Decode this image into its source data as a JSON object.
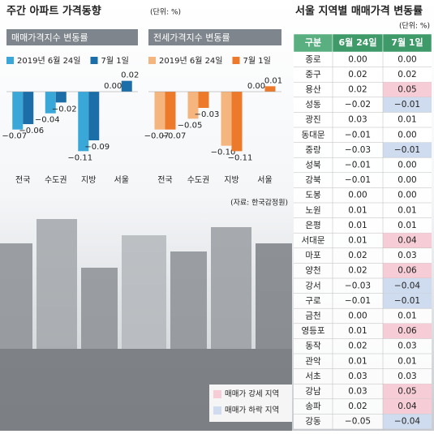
{
  "title": "주간 아파트 가격동향",
  "unit": "(단위: %)",
  "source": "(자료: 한국감정원)",
  "chart_data": [
    {
      "type": "bar",
      "title": "매매가격지수 변동률",
      "categories": [
        "전국",
        "수도권",
        "지방",
        "서울"
      ],
      "series": [
        {
          "name": "2019년 6월 24일",
          "color": "#3aa7d9",
          "values": [
            -0.07,
            -0.04,
            -0.11,
            0.0
          ],
          "value_labels": [
            "−0.07",
            "−0.04",
            "−0.11",
            "0.00"
          ]
        },
        {
          "name": "7월 1일",
          "color": "#1c6ea8",
          "values": [
            -0.06,
            -0.02,
            -0.09,
            0.02
          ],
          "value_labels": [
            "−0.06",
            "−0.02",
            "−0.09",
            "0.02"
          ]
        }
      ],
      "ylim": [
        -0.12,
        0.03
      ]
    },
    {
      "type": "bar",
      "title": "전세가격지수 변동률",
      "categories": [
        "전국",
        "수도권",
        "지방",
        "서울"
      ],
      "series": [
        {
          "name": "2019년 6월 24일",
          "color": "#f4b57e",
          "values": [
            -0.07,
            -0.05,
            -0.1,
            0.0
          ],
          "value_labels": [
            "−0.07",
            "−0.05",
            "−0.10",
            "0.00"
          ]
        },
        {
          "name": "7월 1일",
          "color": "#ec7a2a",
          "values": [
            -0.07,
            -0.03,
            -0.11,
            0.01
          ],
          "value_labels": [
            "−0.07",
            "−0.03",
            "−0.11",
            "0.01"
          ]
        }
      ],
      "ylim": [
        -0.12,
        0.03
      ]
    }
  ],
  "table": {
    "title": "서울 지역별 매매가격 변동률",
    "unit": "(단위: %)",
    "header": [
      "구분",
      "6월 24일",
      "7월 1일"
    ],
    "rows": [
      {
        "cells": [
          "종로",
          "0.00",
          "0.00"
        ]
      },
      {
        "cells": [
          "중구",
          "0.02",
          "0.02"
        ]
      },
      {
        "cells": [
          "용산",
          "0.02",
          "0.05"
        ],
        "color": "#f6cdd6"
      },
      {
        "cells": [
          "성동",
          "−0.02",
          "−0.01"
        ],
        "color": "#cfdcef"
      },
      {
        "cells": [
          "광진",
          "0.03",
          "0.01"
        ]
      },
      {
        "cells": [
          "동대문",
          "−0.01",
          "0.00"
        ]
      },
      {
        "cells": [
          "중랑",
          "−0.03",
          "−0.01"
        ],
        "color": "#cfdcef"
      },
      {
        "cells": [
          "성북",
          "−0.01",
          "0.00"
        ]
      },
      {
        "cells": [
          "강북",
          "−0.01",
          "0.00"
        ]
      },
      {
        "cells": [
          "도봉",
          "0.00",
          "0.00"
        ]
      },
      {
        "cells": [
          "노원",
          "0.01",
          "0.01"
        ]
      },
      {
        "cells": [
          "은평",
          "0.01",
          "0.01"
        ]
      },
      {
        "cells": [
          "서대문",
          "0.01",
          "0.04"
        ],
        "color": "#f6cdd6"
      },
      {
        "cells": [
          "마포",
          "0.02",
          "0.03"
        ]
      },
      {
        "cells": [
          "양천",
          "0.02",
          "0.06"
        ],
        "color": "#f6cdd6"
      },
      {
        "cells": [
          "강서",
          "−0.03",
          "−0.04"
        ],
        "color": "#cfdcef"
      },
      {
        "cells": [
          "구로",
          "−0.01",
          "−0.01"
        ],
        "color": "#cfdcef"
      },
      {
        "cells": [
          "금천",
          "0.00",
          "0.01"
        ]
      },
      {
        "cells": [
          "영등포",
          "0.01",
          "0.06"
        ],
        "color": "#f6cdd6"
      },
      {
        "cells": [
          "동작",
          "0.02",
          "0.03"
        ]
      },
      {
        "cells": [
          "관악",
          "0.01",
          "0.01"
        ]
      },
      {
        "cells": [
          "서초",
          "0.03",
          "0.03"
        ]
      },
      {
        "cells": [
          "강남",
          "0.03",
          "0.05"
        ],
        "color": "#f6cdd6"
      },
      {
        "cells": [
          "송파",
          "0.02",
          "0.04"
        ],
        "color": "#f6cdd6"
      },
      {
        "cells": [
          "강동",
          "−0.05",
          "−0.04"
        ],
        "color": "#cfdcef"
      }
    ],
    "legend": [
      {
        "label": "매매가 강세 지역",
        "color": "#f6cdd6"
      },
      {
        "label": "매매가 하락 지역",
        "color": "#cfdcef"
      }
    ]
  }
}
